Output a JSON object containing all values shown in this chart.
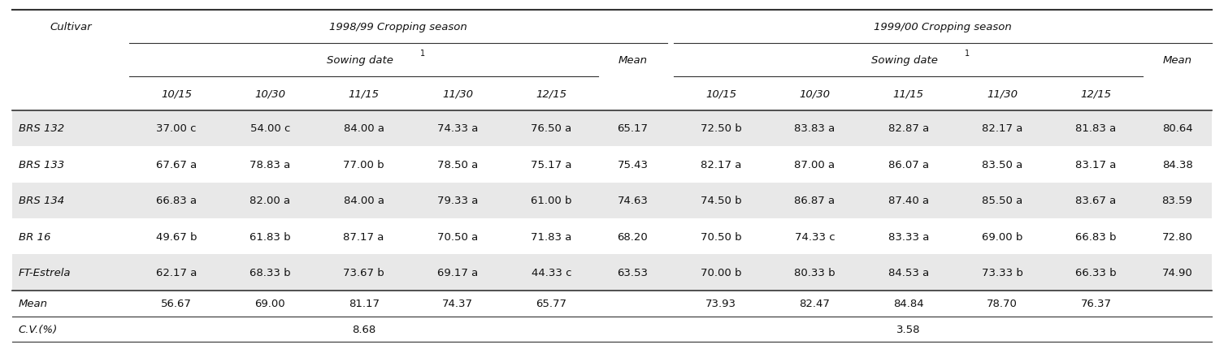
{
  "title_1998": "1998/99 Cropping season",
  "title_1999": "1999/00 Cropping season",
  "mean_label": "Mean",
  "cultivar_label": "Cultivar",
  "dates": [
    "10/15",
    "10/30",
    "11/15",
    "11/30",
    "12/15"
  ],
  "cultivars": [
    "BRS 132",
    "BRS 133",
    "BRS 134",
    "BR 16",
    "FT-Estrela"
  ],
  "data_1998": [
    [
      "37.00 c",
      "54.00 c",
      "84.00 a",
      "74.33 a",
      "76.50 a",
      "65.17"
    ],
    [
      "67.67 a",
      "78.83 a",
      "77.00 b",
      "78.50 a",
      "75.17 a",
      "75.43"
    ],
    [
      "66.83 a",
      "82.00 a",
      "84.00 a",
      "79.33 a",
      "61.00 b",
      "74.63"
    ],
    [
      "49.67 b",
      "61.83 b",
      "87.17 a",
      "70.50 a",
      "71.83 a",
      "68.20"
    ],
    [
      "62.17 a",
      "68.33 b",
      "73.67 b",
      "69.17 a",
      "44.33 c",
      "63.53"
    ]
  ],
  "data_1999": [
    [
      "72.50 b",
      "83.83 a",
      "82.87 a",
      "82.17 a",
      "81.83 a",
      "80.64"
    ],
    [
      "82.17 a",
      "87.00 a",
      "86.07 a",
      "83.50 a",
      "83.17 a",
      "84.38"
    ],
    [
      "74.50 b",
      "86.87 a",
      "87.40 a",
      "85.50 a",
      "83.67 a",
      "83.59"
    ],
    [
      "70.50 b",
      "74.33 c",
      "83.33 a",
      "69.00 b",
      "66.83 b",
      "72.80"
    ],
    [
      "70.00 b",
      "80.33 b",
      "84.53 a",
      "73.33 b",
      "66.33 b",
      "74.90"
    ]
  ],
  "mean_1998": [
    "56.67",
    "69.00",
    "81.17",
    "74.37",
    "65.77"
  ],
  "mean_1999": [
    "73.93",
    "82.47",
    "84.84",
    "78.70",
    "76.37"
  ],
  "cv_1998": "8.68",
  "cv_1999": "3.58",
  "bg_color_odd": "#e8e8e8",
  "bg_color_even": "#ffffff",
  "line_color": "#333333",
  "text_color": "#111111",
  "figsize": [
    15.06,
    4.31
  ],
  "dpi": 100
}
